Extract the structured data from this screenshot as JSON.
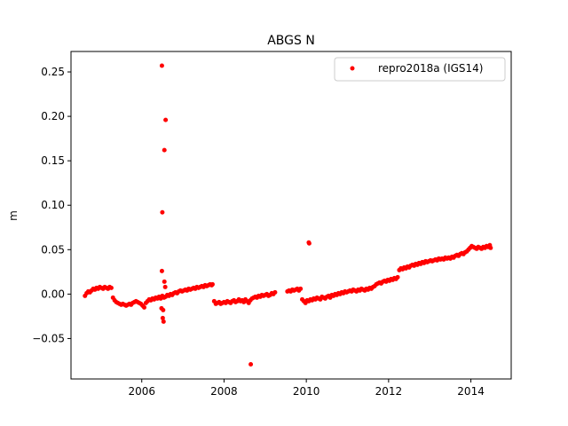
{
  "chart_data": {
    "type": "scatter",
    "title": "ABGS N",
    "xlabel": "",
    "ylabel": "m",
    "xlim": [
      2004.28,
      2014.98
    ],
    "ylim": [
      -0.0955,
      0.273
    ],
    "xticks": [
      2006,
      2008,
      2010,
      2012,
      2014
    ],
    "xtick_labels": [
      "2006",
      "2008",
      "2010",
      "2012",
      "2014"
    ],
    "yticks": [
      -0.05,
      0.0,
      0.05,
      0.1,
      0.15,
      0.2,
      0.25
    ],
    "ytick_labels": [
      "−0.05",
      "0.00",
      "0.05",
      "0.10",
      "0.15",
      "0.20",
      "0.25"
    ],
    "grid": false,
    "legend_position": "top-right",
    "series": [
      {
        "name": "repro2018a (IGS14)",
        "color": "#ff0000",
        "marker": "circle",
        "points": [
          [
            2004.62,
            -0.002
          ],
          [
            2004.66,
            0.001
          ],
          [
            2004.7,
            0.003
          ],
          [
            2004.74,
            0.002
          ],
          [
            2004.78,
            0.004
          ],
          [
            2004.82,
            0.006
          ],
          [
            2004.86,
            0.005
          ],
          [
            2004.9,
            0.007
          ],
          [
            2004.94,
            0.006
          ],
          [
            2004.98,
            0.008
          ],
          [
            2005.02,
            0.007
          ],
          [
            2005.06,
            0.006
          ],
          [
            2005.1,
            0.008
          ],
          [
            2005.14,
            0.007
          ],
          [
            2005.18,
            0.006
          ],
          [
            2005.22,
            0.008
          ],
          [
            2005.26,
            0.007
          ],
          [
            2005.3,
            -0.004
          ],
          [
            2005.34,
            -0.007
          ],
          [
            2005.38,
            -0.009
          ],
          [
            2005.42,
            -0.01
          ],
          [
            2005.46,
            -0.011
          ],
          [
            2005.5,
            -0.012
          ],
          [
            2005.54,
            -0.011
          ],
          [
            2005.58,
            -0.012
          ],
          [
            2005.62,
            -0.013
          ],
          [
            2005.66,
            -0.012
          ],
          [
            2005.7,
            -0.011
          ],
          [
            2005.74,
            -0.012
          ],
          [
            2005.78,
            -0.01
          ],
          [
            2005.82,
            -0.009
          ],
          [
            2005.86,
            -0.008
          ],
          [
            2005.9,
            -0.009
          ],
          [
            2005.94,
            -0.01
          ],
          [
            2005.98,
            -0.011
          ],
          [
            2006.02,
            -0.013
          ],
          [
            2006.06,
            -0.015
          ],
          [
            2006.1,
            -0.01
          ],
          [
            2006.14,
            -0.008
          ],
          [
            2006.18,
            -0.006
          ],
          [
            2006.22,
            -0.007
          ],
          [
            2006.26,
            -0.005
          ],
          [
            2006.3,
            -0.006
          ],
          [
            2006.34,
            -0.004
          ],
          [
            2006.38,
            -0.005
          ],
          [
            2006.42,
            -0.003
          ],
          [
            2006.46,
            -0.005
          ],
          [
            2006.5,
            -0.002
          ],
          [
            2006.54,
            -0.004
          ],
          [
            2006.58,
            -0.003
          ],
          [
            2006.62,
            -0.001
          ],
          [
            2006.66,
            -0.002
          ],
          [
            2006.7,
            0.0
          ],
          [
            2006.74,
            -0.001
          ],
          [
            2006.78,
            0.001
          ],
          [
            2006.82,
            0.002
          ],
          [
            2006.86,
            0.001
          ],
          [
            2006.9,
            0.003
          ],
          [
            2006.94,
            0.004
          ],
          [
            2006.98,
            0.003
          ],
          [
            2007.02,
            0.004
          ],
          [
            2007.06,
            0.005
          ],
          [
            2007.1,
            0.004
          ],
          [
            2007.14,
            0.006
          ],
          [
            2007.18,
            0.005
          ],
          [
            2007.22,
            0.006
          ],
          [
            2007.26,
            0.007
          ],
          [
            2007.3,
            0.006
          ],
          [
            2007.34,
            0.008
          ],
          [
            2007.38,
            0.007
          ],
          [
            2007.42,
            0.008
          ],
          [
            2007.46,
            0.009
          ],
          [
            2007.5,
            0.008
          ],
          [
            2007.54,
            0.01
          ],
          [
            2007.58,
            0.009
          ],
          [
            2007.62,
            0.01
          ],
          [
            2007.66,
            0.011
          ],
          [
            2007.7,
            0.01
          ],
          [
            2007.72,
            0.011
          ],
          [
            2007.76,
            -0.008
          ],
          [
            2007.8,
            -0.011
          ],
          [
            2007.84,
            -0.01
          ],
          [
            2007.88,
            -0.009
          ],
          [
            2007.92,
            -0.011
          ],
          [
            2007.96,
            -0.01
          ],
          [
            2008.0,
            -0.009
          ],
          [
            2008.04,
            -0.01
          ],
          [
            2008.08,
            -0.008
          ],
          [
            2008.12,
            -0.009
          ],
          [
            2008.16,
            -0.01
          ],
          [
            2008.2,
            -0.008
          ],
          [
            2008.24,
            -0.007
          ],
          [
            2008.28,
            -0.009
          ],
          [
            2008.32,
            -0.008
          ],
          [
            2008.36,
            -0.006
          ],
          [
            2008.4,
            -0.008
          ],
          [
            2008.44,
            -0.007
          ],
          [
            2008.48,
            -0.009
          ],
          [
            2008.52,
            -0.006
          ],
          [
            2008.56,
            -0.008
          ],
          [
            2008.6,
            -0.01
          ],
          [
            2008.64,
            -0.007
          ],
          [
            2008.68,
            -0.005
          ],
          [
            2008.72,
            -0.004
          ],
          [
            2008.76,
            -0.003
          ],
          [
            2008.8,
            -0.004
          ],
          [
            2008.84,
            -0.002
          ],
          [
            2008.88,
            -0.003
          ],
          [
            2008.92,
            -0.001
          ],
          [
            2008.96,
            -0.002
          ],
          [
            2009.0,
            -0.001
          ],
          [
            2009.04,
            0.0
          ],
          [
            2009.08,
            -0.002
          ],
          [
            2009.12,
            -0.001
          ],
          [
            2009.16,
            0.001
          ],
          [
            2009.2,
            0.0
          ],
          [
            2009.24,
            0.002
          ],
          [
            2009.54,
            0.003
          ],
          [
            2009.58,
            0.004
          ],
          [
            2009.62,
            0.003
          ],
          [
            2009.66,
            0.005
          ],
          [
            2009.7,
            0.004
          ],
          [
            2009.74,
            0.005
          ],
          [
            2009.78,
            0.006
          ],
          [
            2009.82,
            0.004
          ],
          [
            2009.86,
            0.006
          ],
          [
            2009.9,
            -0.006
          ],
          [
            2009.94,
            -0.008
          ],
          [
            2009.98,
            -0.01
          ],
          [
            2010.02,
            -0.007
          ],
          [
            2010.06,
            -0.008
          ],
          [
            2010.1,
            -0.006
          ],
          [
            2010.14,
            -0.007
          ],
          [
            2010.18,
            -0.005
          ],
          [
            2010.22,
            -0.006
          ],
          [
            2010.26,
            -0.004
          ],
          [
            2010.3,
            -0.005
          ],
          [
            2010.34,
            -0.006
          ],
          [
            2010.38,
            -0.003
          ],
          [
            2010.42,
            -0.004
          ],
          [
            2010.46,
            -0.005
          ],
          [
            2010.5,
            -0.003
          ],
          [
            2010.54,
            -0.002
          ],
          [
            2010.58,
            -0.004
          ],
          [
            2010.62,
            -0.001
          ],
          [
            2010.66,
            -0.002
          ],
          [
            2010.7,
            0.0
          ],
          [
            2010.74,
            -0.001
          ],
          [
            2010.78,
            0.001
          ],
          [
            2010.82,
            0.0
          ],
          [
            2010.86,
            0.002
          ],
          [
            2010.9,
            0.001
          ],
          [
            2010.94,
            0.003
          ],
          [
            2010.98,
            0.002
          ],
          [
            2011.02,
            0.003
          ],
          [
            2011.06,
            0.004
          ],
          [
            2011.1,
            0.003
          ],
          [
            2011.14,
            0.005
          ],
          [
            2011.18,
            0.004
          ],
          [
            2011.22,
            0.003
          ],
          [
            2011.26,
            0.005
          ],
          [
            2011.3,
            0.004
          ],
          [
            2011.34,
            0.006
          ],
          [
            2011.38,
            0.005
          ],
          [
            2011.42,
            0.004
          ],
          [
            2011.46,
            0.006
          ],
          [
            2011.5,
            0.005
          ],
          [
            2011.54,
            0.007
          ],
          [
            2011.58,
            0.006
          ],
          [
            2011.62,
            0.008
          ],
          [
            2011.66,
            0.009
          ],
          [
            2011.7,
            0.011
          ],
          [
            2011.74,
            0.012
          ],
          [
            2011.78,
            0.013
          ],
          [
            2011.82,
            0.012
          ],
          [
            2011.86,
            0.014
          ],
          [
            2011.9,
            0.015
          ],
          [
            2011.94,
            0.014
          ],
          [
            2011.98,
            0.016
          ],
          [
            2012.02,
            0.015
          ],
          [
            2012.06,
            0.017
          ],
          [
            2012.1,
            0.016
          ],
          [
            2012.14,
            0.018
          ],
          [
            2012.18,
            0.017
          ],
          [
            2012.22,
            0.019
          ],
          [
            2012.26,
            0.027
          ],
          [
            2012.3,
            0.029
          ],
          [
            2012.34,
            0.028
          ],
          [
            2012.38,
            0.03
          ],
          [
            2012.42,
            0.029
          ],
          [
            2012.46,
            0.031
          ],
          [
            2012.5,
            0.03
          ],
          [
            2012.54,
            0.032
          ],
          [
            2012.58,
            0.033
          ],
          [
            2012.62,
            0.032
          ],
          [
            2012.66,
            0.034
          ],
          [
            2012.7,
            0.033
          ],
          [
            2012.74,
            0.035
          ],
          [
            2012.78,
            0.034
          ],
          [
            2012.82,
            0.036
          ],
          [
            2012.86,
            0.035
          ],
          [
            2012.9,
            0.037
          ],
          [
            2012.94,
            0.036
          ],
          [
            2012.98,
            0.037
          ],
          [
            2013.02,
            0.038
          ],
          [
            2013.06,
            0.037
          ],
          [
            2013.1,
            0.038
          ],
          [
            2013.14,
            0.039
          ],
          [
            2013.18,
            0.038
          ],
          [
            2013.22,
            0.04
          ],
          [
            2013.26,
            0.039
          ],
          [
            2013.3,
            0.04
          ],
          [
            2013.34,
            0.039
          ],
          [
            2013.38,
            0.041
          ],
          [
            2013.42,
            0.04
          ],
          [
            2013.46,
            0.041
          ],
          [
            2013.5,
            0.04
          ],
          [
            2013.54,
            0.042
          ],
          [
            2013.58,
            0.041
          ],
          [
            2013.62,
            0.043
          ],
          [
            2013.66,
            0.044
          ],
          [
            2013.7,
            0.043
          ],
          [
            2013.74,
            0.045
          ],
          [
            2013.78,
            0.046
          ],
          [
            2013.82,
            0.045
          ],
          [
            2013.86,
            0.047
          ],
          [
            2013.9,
            0.048
          ],
          [
            2013.94,
            0.05
          ],
          [
            2013.98,
            0.052
          ],
          [
            2014.02,
            0.054
          ],
          [
            2014.06,
            0.053
          ],
          [
            2014.1,
            0.052
          ],
          [
            2014.14,
            0.051
          ],
          [
            2014.18,
            0.053
          ],
          [
            2014.22,
            0.052
          ],
          [
            2014.26,
            0.051
          ],
          [
            2014.3,
            0.053
          ],
          [
            2014.34,
            0.052
          ],
          [
            2014.38,
            0.054
          ],
          [
            2014.42,
            0.053
          ],
          [
            2014.46,
            0.055
          ],
          [
            2014.48,
            0.052
          ],
          [
            2006.49,
            0.257
          ],
          [
            2006.58,
            0.196
          ],
          [
            2006.55,
            0.162
          ],
          [
            2006.5,
            0.092
          ],
          [
            2006.49,
            0.026
          ],
          [
            2006.55,
            0.014
          ],
          [
            2006.57,
            0.008
          ],
          [
            2006.52,
            -0.018
          ],
          [
            2006.48,
            -0.016
          ],
          [
            2006.51,
            -0.027
          ],
          [
            2006.53,
            -0.031
          ],
          [
            2008.65,
            -0.079
          ],
          [
            2010.06,
            0.058
          ],
          [
            2010.07,
            0.057
          ]
        ]
      }
    ]
  }
}
